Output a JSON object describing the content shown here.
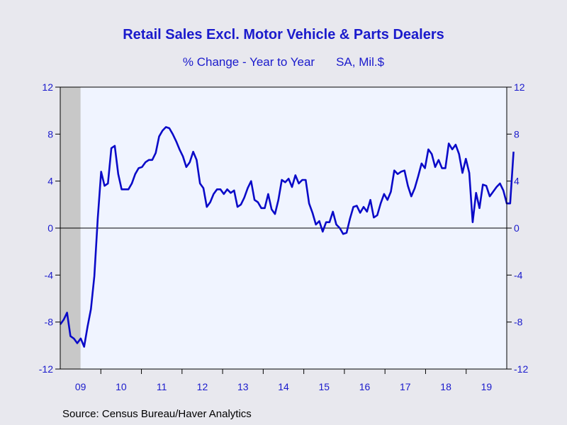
{
  "title": "Retail Sales Excl. Motor Vehicle & Parts Dealers",
  "subtitle_left": "% Change - Year to Year",
  "subtitle_right": "SA, Mil.$",
  "source": "Source:  Census Bureau/Haver Analytics",
  "colors": {
    "line": "#0a0ac8",
    "text": "#1a1acc",
    "plot_bg": "#f0f4ff",
    "recession": "#c8c8c8",
    "page_bg": "#e8e8ee"
  },
  "chart_data": {
    "type": "line",
    "title": "Retail Sales Excl. Motor Vehicle & Parts Dealers",
    "subtitle": "% Change - Year to Year    SA, Mil.$",
    "x_start": "2009-01",
    "x_end": "2019-12",
    "x_tick_labels": [
      "09",
      "10",
      "11",
      "12",
      "13",
      "14",
      "15",
      "16",
      "17",
      "18",
      "19"
    ],
    "y_tick_labels": [
      "12",
      "8",
      "4",
      "0",
      "-4",
      "-8",
      "-12"
    ],
    "ylim": [
      -12,
      12
    ],
    "y_ticks": [
      12,
      8,
      4,
      0,
      -4,
      -8,
      -12
    ],
    "zero_line": true,
    "recession_shading": {
      "start": "2009-01",
      "end": "2009-06"
    },
    "series": [
      {
        "start": "2009-01",
        "frequency": "monthly",
        "values": [
          -8.2,
          -7.8,
          -7.2,
          -9.2,
          -9.4,
          -9.8,
          -9.4,
          -10.1,
          -8.4,
          -6.9,
          -4.1,
          0.8,
          4.8,
          3.6,
          3.8,
          6.8,
          7.0,
          4.6,
          3.3,
          3.3,
          3.3,
          3.8,
          4.6,
          5.1,
          5.2,
          5.6,
          5.8,
          5.8,
          6.4,
          7.8,
          8.3,
          8.6,
          8.5,
          8.0,
          7.4,
          6.7,
          6.1,
          5.2,
          5.6,
          6.5,
          5.8,
          3.8,
          3.4,
          1.8,
          2.2,
          2.9,
          3.3,
          3.3,
          2.9,
          3.3,
          3.0,
          3.2,
          1.8,
          2.0,
          2.6,
          3.4,
          4.0,
          2.4,
          2.2,
          1.7,
          1.7,
          2.9,
          1.6,
          1.2,
          2.4,
          4.1,
          3.9,
          4.2,
          3.5,
          4.5,
          3.8,
          4.1,
          4.1,
          2.1,
          1.3,
          0.3,
          0.6,
          -0.3,
          0.5,
          0.5,
          1.4,
          0.3,
          0.0,
          -0.5,
          -0.4,
          0.8,
          1.8,
          1.9,
          1.3,
          1.8,
          1.4,
          2.4,
          0.9,
          1.1,
          2.1,
          2.9,
          2.4,
          3.1,
          4.9,
          4.6,
          4.8,
          4.9,
          3.6,
          2.7,
          3.4,
          4.4,
          5.5,
          5.1,
          6.7,
          6.3,
          5.2,
          5.8,
          5.1,
          5.1,
          7.2,
          6.7,
          7.1,
          6.3,
          4.7,
          5.9,
          4.7,
          0.5,
          3.0,
          1.7,
          3.7,
          3.6,
          2.7,
          3.1,
          3.5,
          3.8,
          3.2,
          2.1,
          2.1,
          6.5
        ]
      }
    ]
  }
}
